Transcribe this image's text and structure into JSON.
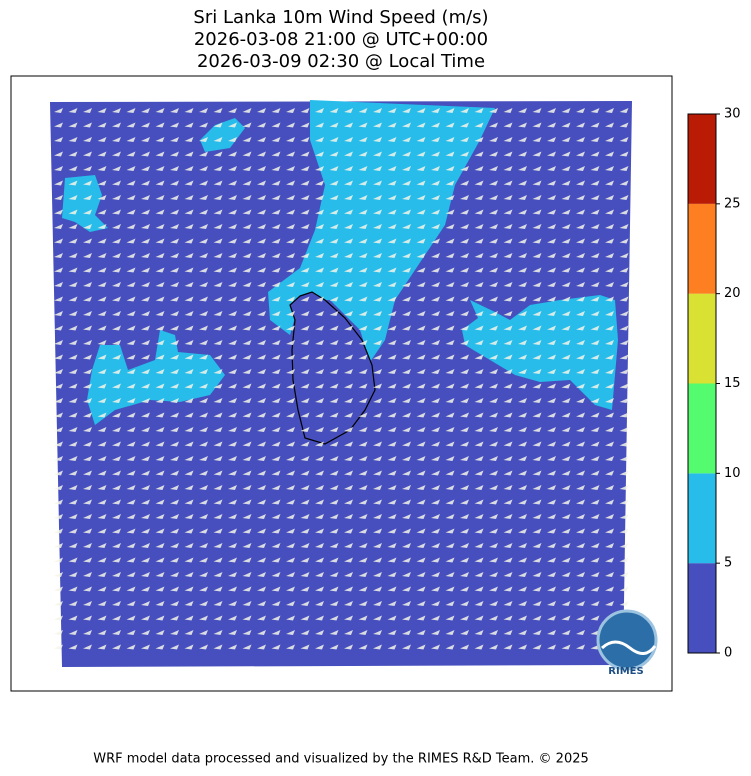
{
  "title": [
    "Sri Lanka 10m Wind Speed (m/s)",
    "2026-03-08 21:00 @ UTC+00:00",
    "2026-03-09 02:30 @ Local Time"
  ],
  "colorbar": {
    "ticks": [
      0,
      5,
      10,
      15,
      20,
      25,
      30
    ],
    "colors": [
      "#464fbd",
      "#27bce9",
      "#55fb6e",
      "#d9e233",
      "#fd7f22",
      "#b91b04"
    ]
  },
  "logo": "RIMES",
  "footer": "WRF model data processed and visualized by the RIMES R&D Team. © 2025"
}
